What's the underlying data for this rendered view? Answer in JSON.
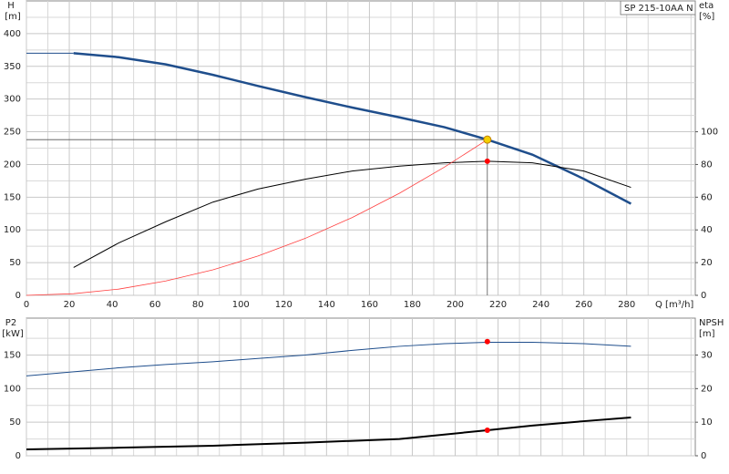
{
  "chart_data": [
    {
      "type": "line",
      "title": "SP 215-10AA N",
      "ylabel": "H",
      "yunit": "[m]",
      "y2label": "eta",
      "y2unit": "[%]",
      "xlabel": "Q [m³/h]",
      "xlim": [
        0,
        312
      ],
      "xticks": [
        0,
        20,
        40,
        60,
        80,
        100,
        120,
        140,
        160,
        180,
        200,
        220,
        240,
        260,
        280
      ],
      "xminorticks": [
        10,
        30,
        50,
        70,
        90,
        110,
        130,
        150,
        170,
        190,
        210,
        230,
        250,
        270,
        290,
        310
      ],
      "ylim": [
        0,
        450
      ],
      "yticks": [
        0,
        50,
        100,
        150,
        200,
        250,
        300,
        350,
        400
      ],
      "yminorticks": [
        25,
        75,
        125,
        175,
        225,
        275,
        325,
        375,
        425
      ],
      "y2lim": [
        0,
        180
      ],
      "y2ticks": [
        0,
        20,
        40,
        60,
        80,
        100
      ],
      "grid": true,
      "show_xticklabels": true,
      "series": [
        {
          "color": "#1f4e8c",
          "width": 1,
          "axis": "y",
          "x": [
            0,
            22
          ],
          "values": [
            370,
            370
          ]
        },
        {
          "color": "#1f4e8c",
          "width": 2.5,
          "axis": "y",
          "x": [
            22,
            43,
            65,
            87,
            108,
            130,
            152,
            174,
            195,
            215,
            236,
            260,
            282
          ],
          "values": [
            370,
            364,
            353,
            337,
            320,
            303,
            287,
            272,
            257,
            238,
            215,
            178,
            140
          ]
        },
        {
          "color": "#000000",
          "width": 1,
          "axis": "y2",
          "x": [
            22,
            43,
            65,
            87,
            108,
            130,
            152,
            174,
            195,
            215,
            236,
            260,
            282
          ],
          "values": [
            17,
            32,
            45,
            57,
            65,
            71,
            76,
            79,
            81,
            82,
            81,
            76,
            66
          ]
        },
        {
          "color": "#ff4040",
          "width": 0.8,
          "axis": "y",
          "x": [
            0,
            22,
            43,
            65,
            87,
            108,
            130,
            152,
            174,
            195,
            215
          ],
          "values": [
            0,
            2.5,
            9.5,
            22,
            39,
            60,
            87,
            119,
            156,
            196,
            238
          ]
        }
      ],
      "operating_point": {
        "x": 215,
        "y": 238,
        "y2": 82,
        "color": "#f5d000",
        "y2_color": "#ff0000"
      }
    },
    {
      "type": "line",
      "ylabel": "P2",
      "yunit": "[kW]",
      "y2label": "NPSH",
      "y2unit": "[m]",
      "xlim": [
        0,
        312
      ],
      "xticks": [
        0,
        20,
        40,
        60,
        80,
        100,
        120,
        140,
        160,
        180,
        200,
        220,
        240,
        260,
        280
      ],
      "xminorticks": [
        10,
        30,
        50,
        70,
        90,
        110,
        130,
        150,
        170,
        190,
        210,
        230,
        250,
        270,
        290,
        310
      ],
      "ylim": [
        0,
        205
      ],
      "yticks": [
        0,
        50,
        100,
        150
      ],
      "yminorticks": [
        25,
        75,
        125,
        175
      ],
      "y2lim": [
        0,
        41
      ],
      "y2ticks": [
        0,
        10,
        20,
        30
      ],
      "grid": true,
      "show_xticklabels": false,
      "series": [
        {
          "color": "#1f4e8c",
          "width": 1,
          "axis": "y",
          "x": [
            0,
            22,
            43,
            65,
            87,
            108,
            130,
            152,
            174,
            195,
            215,
            236,
            260,
            282
          ],
          "values": [
            119,
            125,
            131,
            136,
            140,
            145,
            150,
            157,
            163,
            167,
            169,
            169,
            167,
            163
          ]
        },
        {
          "color": "#000000",
          "width": 2,
          "axis": "y2",
          "x": [
            0,
            43,
            87,
            130,
            174,
            215,
            236,
            260,
            282
          ],
          "values": [
            1.9,
            2.4,
            3.0,
            3.9,
            5.0,
            7.6,
            9.0,
            10.3,
            11.4
          ]
        }
      ],
      "operating_point": {
        "y": 170,
        "y2": 7.6,
        "x": 215,
        "color": "#ff0000",
        "y2_color": "#ff0000"
      }
    }
  ]
}
